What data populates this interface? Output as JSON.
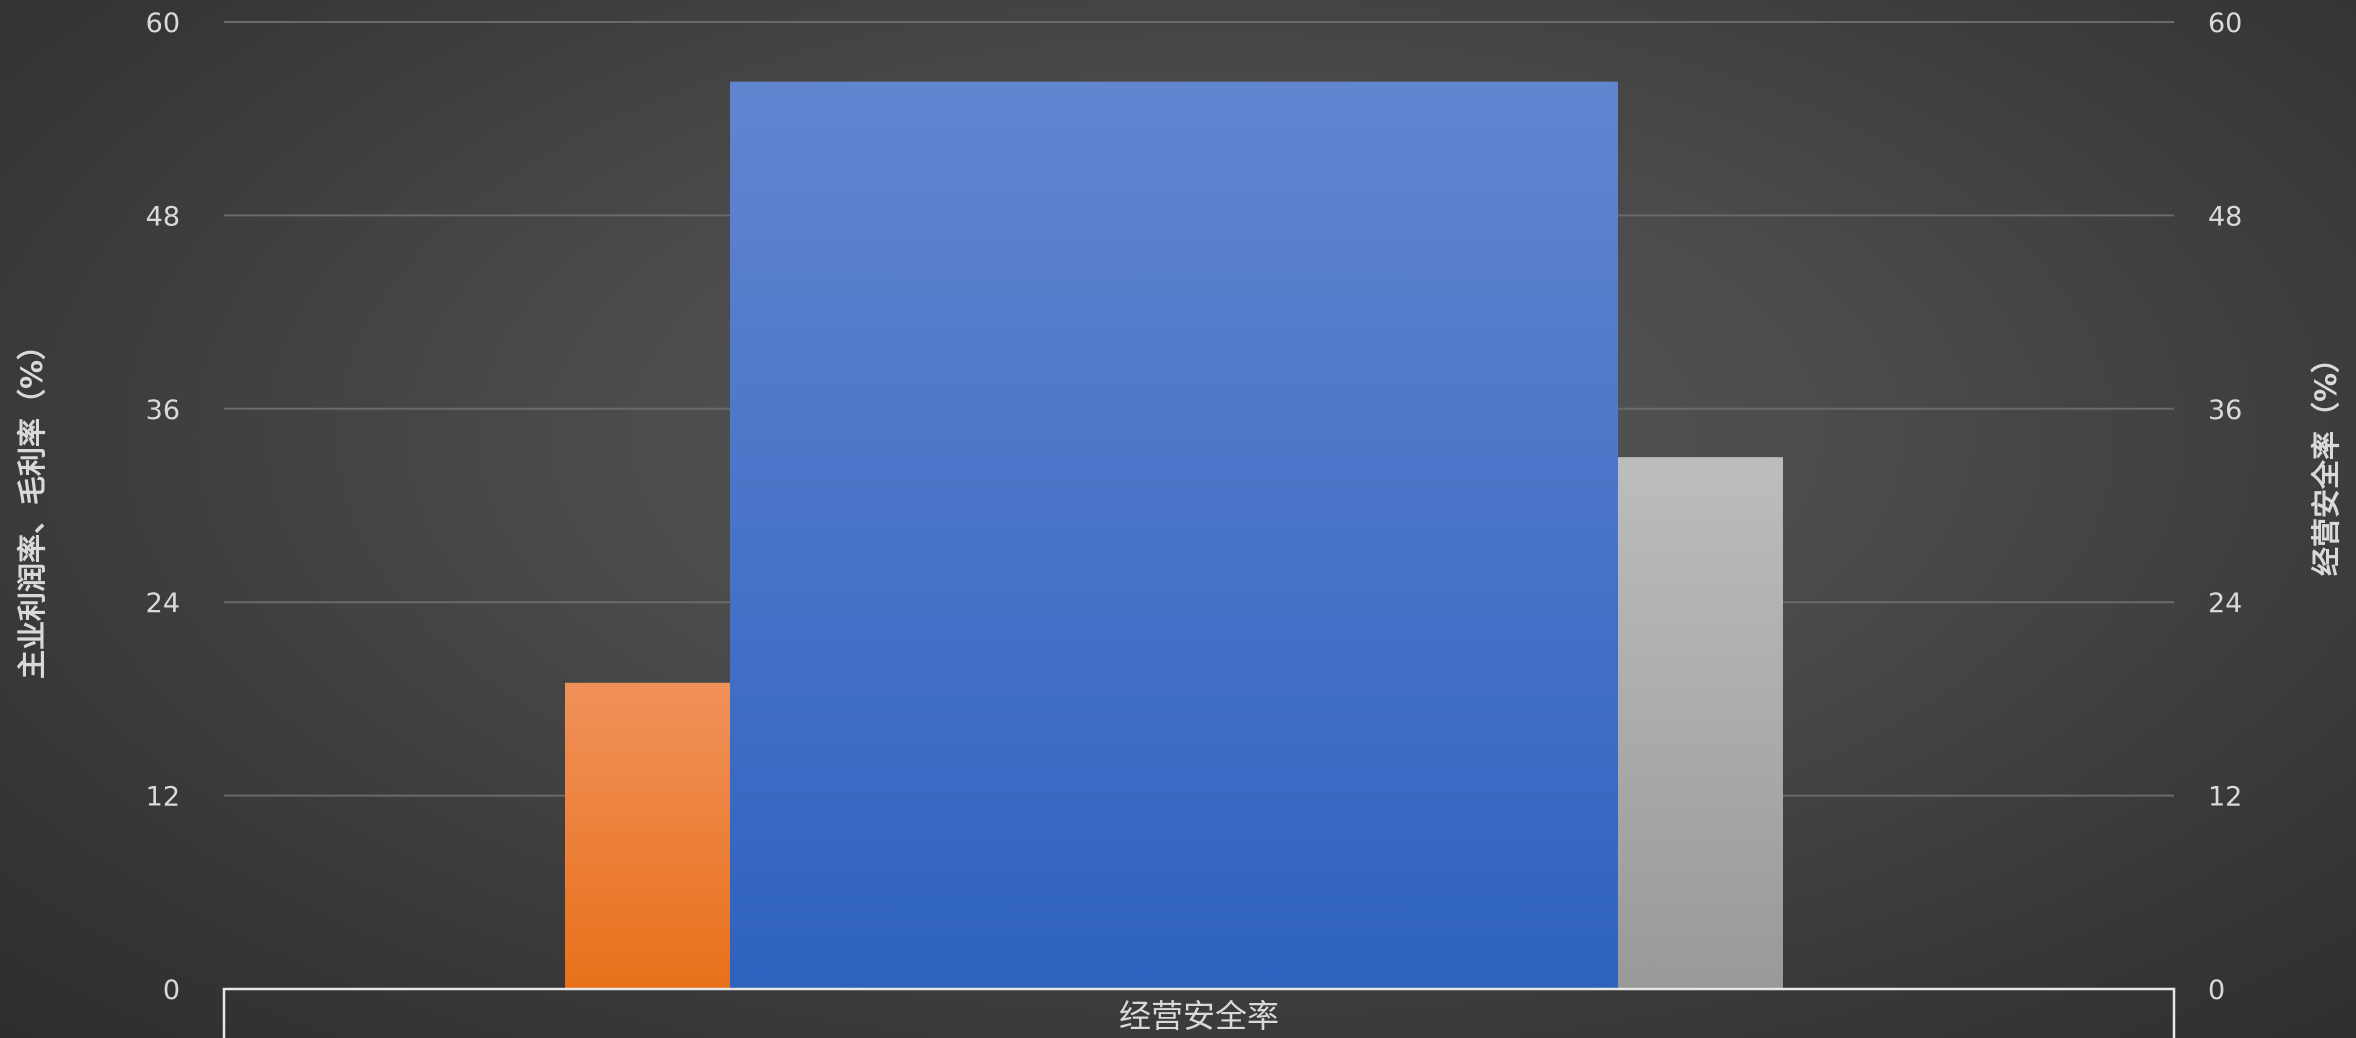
{
  "chart_data": {
    "type": "bar",
    "categories": [
      "经营安全率"
    ],
    "series": [
      {
        "axis": "left",
        "values": [
          19
        ],
        "color": "#ed7d31"
      },
      {
        "axis": "right",
        "values": [
          56.3
        ],
        "color": "#4472c4"
      },
      {
        "axis": "left",
        "values": [
          33
        ],
        "color": "#a5a5a5"
      }
    ],
    "ylabel": "主业利润率、毛利率（%）",
    "y2label": "经营安全率（%）",
    "ylim": [
      0,
      60
    ],
    "y2lim": [
      0,
      60
    ],
    "yticks": [
      "0",
      "12",
      "24",
      "36",
      "48",
      "60"
    ],
    "y2ticks": [
      "0",
      "12",
      "24",
      "36",
      "48",
      "60"
    ],
    "grid": true,
    "legend": "none"
  }
}
